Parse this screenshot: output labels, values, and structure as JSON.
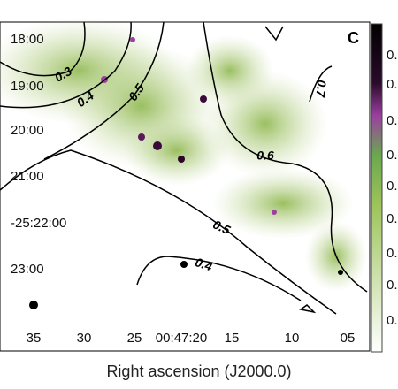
{
  "panel_label": "C",
  "x_axis": {
    "label": "Right ascension (J2000.0)",
    "ticks": [
      "35",
      "30",
      "25",
      "00:47:20",
      "15",
      "10",
      "05"
    ]
  },
  "y_axis": {
    "ticks": [
      "18:00",
      "19:00",
      "20:00",
      "21:00",
      "-25:22:00",
      "23:00"
    ]
  },
  "contour_labels": [
    "0.3",
    "0.4",
    "0.5",
    "0.6",
    "0.7",
    "0.5",
    "0.4"
  ],
  "colorbar_labels": [
    "0.",
    "0.",
    "0.",
    "0.",
    "0.",
    "0.",
    "0.",
    "0.",
    "0."
  ]
}
